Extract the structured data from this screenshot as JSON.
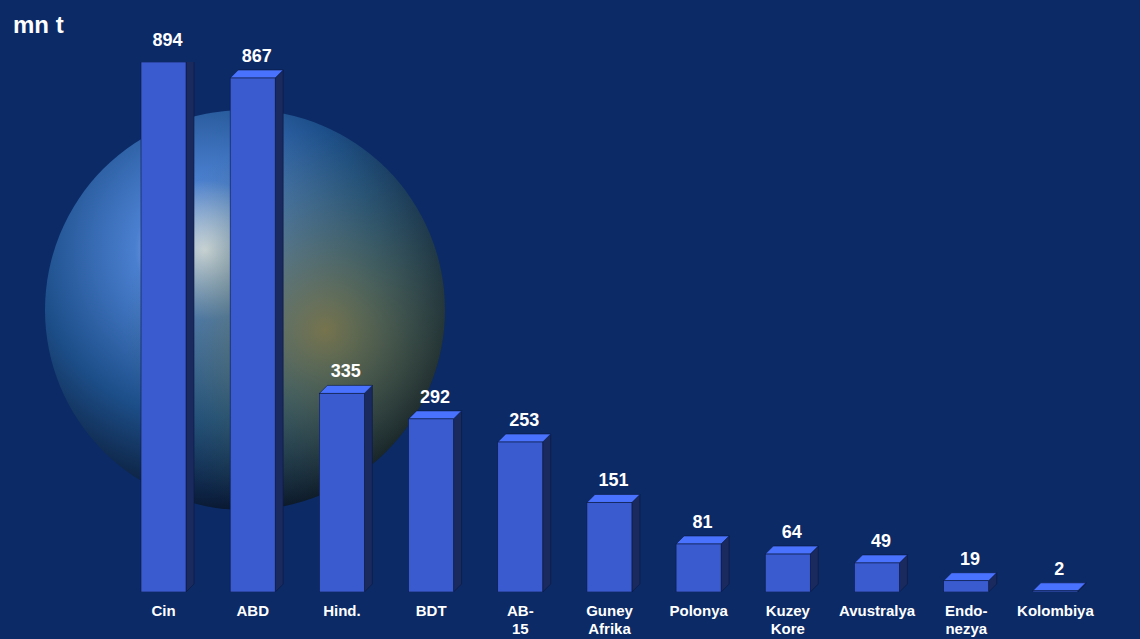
{
  "chart_data": {
    "type": "bar",
    "ylabel": "mn t",
    "categories": [
      "Cin",
      "ABD",
      "Hind.",
      "BDT",
      "AB-15",
      "Guney Afrika",
      "Polonya",
      "Kuzey Kore",
      "Avustralya",
      "Endo-nezya",
      "Kolombiya"
    ],
    "values": [
      894,
      867,
      335,
      292,
      253,
      151,
      81,
      64,
      49,
      19,
      2
    ],
    "color": "#3a5bd0",
    "ylim": [
      0,
      894
    ],
    "data_labels": true,
    "tick_labels": "x",
    "grid": false
  }
}
